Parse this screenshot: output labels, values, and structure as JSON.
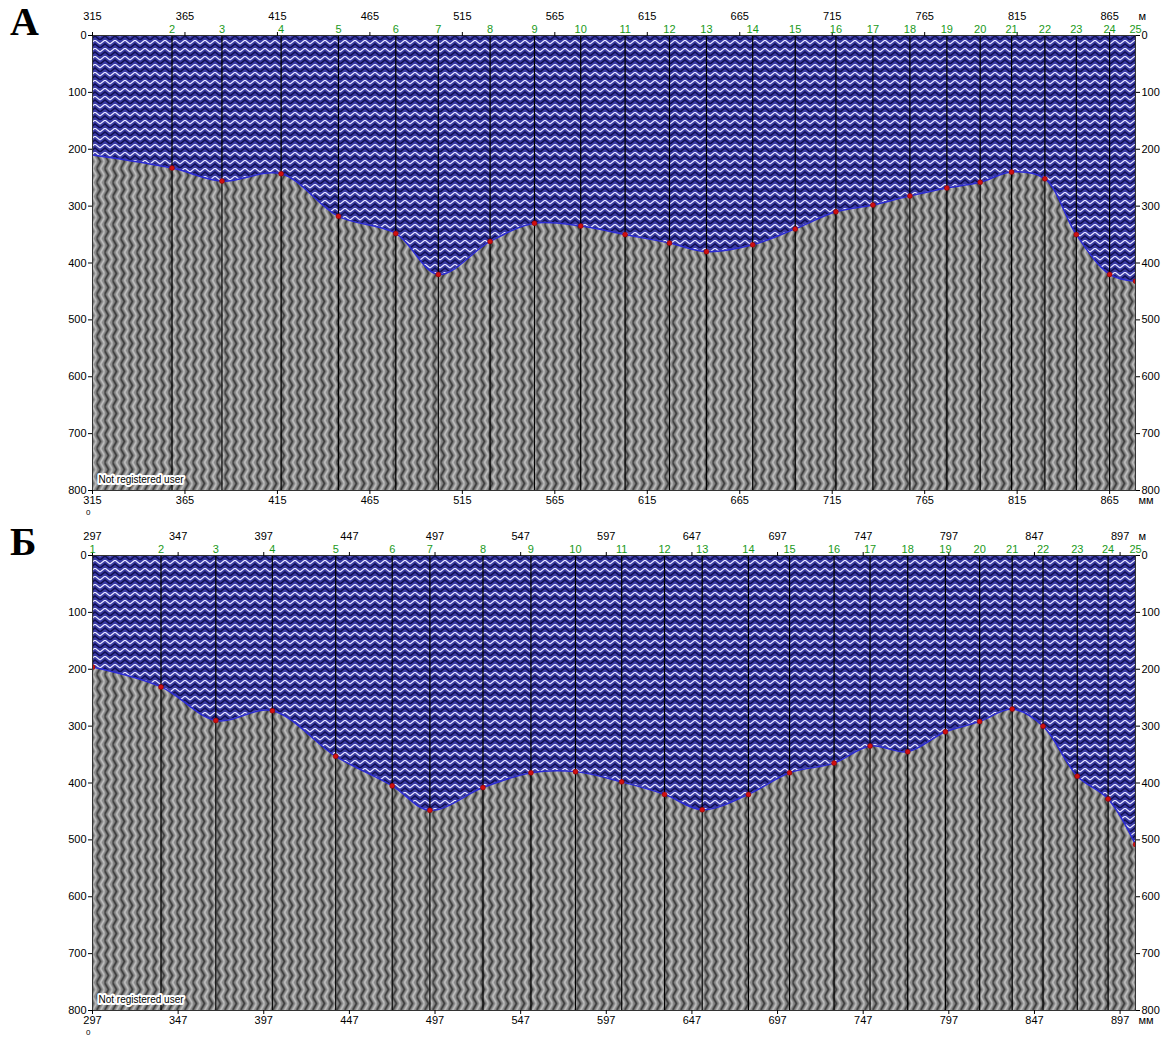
{
  "chart_data": [
    {
      "type": "radargram",
      "panel": "А",
      "xlim": [
        315,
        879
      ],
      "xticks": [
        315,
        365,
        415,
        465,
        515,
        565,
        615,
        665,
        715,
        765,
        815,
        865
      ],
      "ylim": [
        0,
        800
      ],
      "yticks": [
        0,
        100,
        200,
        300,
        400,
        500,
        600,
        700,
        800
      ],
      "x_unit_top": "м",
      "x_unit_bottom": "мм",
      "corner_label": "0",
      "watermark": "Not registered user",
      "boundary": {
        "color": "#2b2bd6",
        "marker": "circle",
        "x": [
          315,
          358,
          385,
          417,
          448,
          479,
          502,
          530,
          554,
          579,
          603,
          627,
          647,
          672,
          695,
          717,
          737,
          757,
          777,
          795,
          812,
          830,
          847,
          865,
          879
        ],
        "y": [
          210,
          233,
          256,
          243,
          318,
          348,
          420,
          362,
          330,
          335,
          350,
          365,
          380,
          368,
          340,
          310,
          298,
          282,
          268,
          258,
          240,
          252,
          350,
          420,
          432
        ],
        "trace_labels": [
          null,
          2,
          3,
          4,
          5,
          6,
          7,
          8,
          9,
          10,
          11,
          12,
          13,
          14,
          15,
          16,
          17,
          18,
          19,
          20,
          21,
          22,
          23,
          24,
          25
        ]
      }
    },
    {
      "type": "radargram",
      "panel": "Б",
      "xlim": [
        297,
        906
      ],
      "xticks": [
        297,
        347,
        397,
        447,
        497,
        547,
        597,
        647,
        697,
        747,
        797,
        847,
        897
      ],
      "ylim": [
        0,
        800
      ],
      "yticks": [
        0,
        100,
        200,
        300,
        400,
        500,
        600,
        700,
        800
      ],
      "x_unit_top": "м",
      "x_unit_bottom": "мм",
      "corner_label": "0",
      "watermark": "Not registered user",
      "boundary": {
        "color": "#2b2bd6",
        "marker": "circle",
        "x": [
          297,
          337,
          369,
          402,
          439,
          472,
          494,
          525,
          553,
          579,
          606,
          631,
          653,
          680,
          704,
          730,
          751,
          773,
          795,
          815,
          834,
          852,
          872,
          890,
          906
        ],
        "y": [
          196,
          231,
          290,
          273,
          353,
          405,
          448,
          408,
          382,
          380,
          398,
          420,
          447,
          420,
          382,
          365,
          335,
          345,
          310,
          292,
          270,
          300,
          388,
          428,
          508
        ],
        "trace_labels": [
          1,
          2,
          3,
          4,
          5,
          6,
          7,
          8,
          9,
          10,
          11,
          12,
          13,
          14,
          15,
          16,
          17,
          18,
          19,
          20,
          21,
          22,
          23,
          24,
          25
        ]
      }
    }
  ]
}
